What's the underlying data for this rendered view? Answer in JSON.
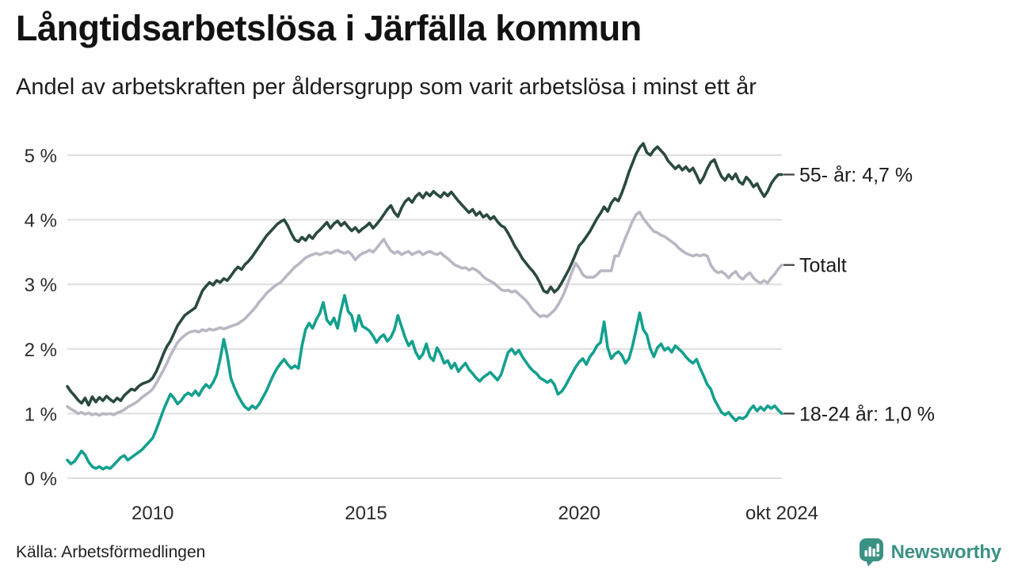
{
  "header": {
    "title": "Långtidsarbetslösa i Järfälla kommun",
    "subtitle": "Andel av arbetskraften per åldersgrupp som varit arbetslösa i minst ett år"
  },
  "footer": {
    "source": "Källa: Arbetsförmedlingen",
    "brand": "Newsworthy"
  },
  "colors": {
    "brand_teal": "#3B9183",
    "grid": "#dedede",
    "end_tick": "#3f3f3f",
    "series_55": "#2a4a3e",
    "series_totalt": "#b9b7c3",
    "series_18_24": "#13a08e"
  },
  "chart_data": {
    "type": "line",
    "title": "Långtidsarbetslösa i Järfälla kommun",
    "subtitle": "Andel av arbetskraften per åldersgrupp som varit arbetslösa i minst ett år",
    "source": "Källa: Arbetsförmedlingen",
    "unit": "%",
    "frequency": "monthly",
    "x_start": "2008-01",
    "x_end": "2024-10",
    "xlim": [
      2008.0,
      2024.75
    ],
    "ylim": [
      0,
      5.3
    ],
    "grid": true,
    "grid_color": "#dedede",
    "legend_position": "right-end-labels",
    "yticks": [
      {
        "v": 0,
        "label": "0 %"
      },
      {
        "v": 1,
        "label": "1 %"
      },
      {
        "v": 2,
        "label": "2 %"
      },
      {
        "v": 3,
        "label": "3 %"
      },
      {
        "v": 4,
        "label": "4 %"
      },
      {
        "v": 5,
        "label": "5 %"
      }
    ],
    "xticks": [
      {
        "t": 2010,
        "label": "2010"
      },
      {
        "t": 2015,
        "label": "2015"
      },
      {
        "t": 2020,
        "label": "2020"
      },
      {
        "t": 2024.75,
        "label": "okt 2024"
      }
    ],
    "series": [
      {
        "id": "totalt",
        "name": "Totalt",
        "end_label": "Totalt",
        "last_value": 3.3,
        "color": "#b9b7c3",
        "values": [
          1.11,
          1.07,
          1.04,
          1.0,
          1.02,
          0.99,
          1.01,
          0.98,
          1.0,
          0.97,
          1.0,
          0.99,
          1.0,
          0.98,
          1.01,
          1.03,
          1.06,
          1.1,
          1.13,
          1.16,
          1.2,
          1.25,
          1.29,
          1.33,
          1.38,
          1.47,
          1.57,
          1.67,
          1.78,
          1.9,
          2.0,
          2.1,
          2.16,
          2.21,
          2.25,
          2.27,
          2.28,
          2.26,
          2.3,
          2.28,
          2.31,
          2.29,
          2.31,
          2.33,
          2.31,
          2.33,
          2.35,
          2.37,
          2.39,
          2.43,
          2.47,
          2.53,
          2.59,
          2.65,
          2.73,
          2.79,
          2.86,
          2.91,
          2.96,
          3.0,
          3.03,
          3.09,
          3.15,
          3.21,
          3.27,
          3.31,
          3.36,
          3.41,
          3.44,
          3.46,
          3.48,
          3.46,
          3.48,
          3.5,
          3.48,
          3.51,
          3.53,
          3.5,
          3.48,
          3.51,
          3.46,
          3.38,
          3.44,
          3.48,
          3.5,
          3.53,
          3.5,
          3.56,
          3.63,
          3.7,
          3.6,
          3.52,
          3.48,
          3.51,
          3.46,
          3.49,
          3.51,
          3.46,
          3.49,
          3.51,
          3.46,
          3.49,
          3.51,
          3.48,
          3.46,
          3.49,
          3.44,
          3.4,
          3.35,
          3.3,
          3.28,
          3.25,
          3.26,
          3.22,
          3.25,
          3.22,
          3.18,
          3.12,
          3.08,
          3.05,
          3.02,
          2.97,
          2.92,
          2.9,
          2.91,
          2.88,
          2.9,
          2.85,
          2.8,
          2.75,
          2.68,
          2.6,
          2.55,
          2.5,
          2.52,
          2.5,
          2.55,
          2.6,
          2.68,
          2.78,
          2.9,
          3.05,
          3.2,
          3.33,
          3.25,
          3.15,
          3.11,
          3.11,
          3.11,
          3.15,
          3.21,
          3.21,
          3.21,
          3.21,
          3.44,
          3.44,
          3.58,
          3.72,
          3.85,
          3.98,
          4.08,
          4.12,
          4.02,
          3.95,
          3.88,
          3.82,
          3.8,
          3.76,
          3.74,
          3.7,
          3.66,
          3.62,
          3.56,
          3.52,
          3.48,
          3.46,
          3.44,
          3.46,
          3.44,
          3.46,
          3.44,
          3.3,
          3.22,
          3.18,
          3.2,
          3.16,
          3.1,
          3.16,
          3.2,
          3.12,
          3.08,
          3.14,
          3.18,
          3.1,
          3.05,
          3.02,
          3.06,
          3.02,
          3.1,
          3.16,
          3.24,
          3.3
        ]
      },
      {
        "id": "55",
        "name": "55- år",
        "end_label": "55- år: 4,7 %",
        "last_value": 4.7,
        "color": "#2a4a3e",
        "values": [
          1.42,
          1.34,
          1.28,
          1.21,
          1.16,
          1.24,
          1.13,
          1.26,
          1.18,
          1.25,
          1.2,
          1.27,
          1.22,
          1.18,
          1.24,
          1.2,
          1.28,
          1.33,
          1.38,
          1.36,
          1.42,
          1.46,
          1.48,
          1.5,
          1.55,
          1.65,
          1.78,
          1.92,
          2.04,
          2.12,
          2.24,
          2.36,
          2.44,
          2.52,
          2.56,
          2.6,
          2.64,
          2.77,
          2.9,
          2.97,
          3.03,
          2.99,
          3.06,
          3.03,
          3.09,
          3.06,
          3.13,
          3.21,
          3.27,
          3.23,
          3.31,
          3.36,
          3.43,
          3.51,
          3.59,
          3.67,
          3.75,
          3.81,
          3.87,
          3.93,
          3.97,
          4.0,
          3.91,
          3.79,
          3.69,
          3.66,
          3.73,
          3.68,
          3.76,
          3.71,
          3.79,
          3.84,
          3.9,
          3.96,
          3.87,
          3.94,
          3.98,
          3.91,
          3.96,
          3.89,
          3.83,
          3.88,
          3.81,
          3.86,
          3.9,
          3.95,
          3.87,
          3.93,
          4.0,
          4.08,
          4.16,
          4.22,
          4.11,
          4.05,
          4.18,
          4.28,
          4.33,
          4.27,
          4.36,
          4.41,
          4.34,
          4.42,
          4.37,
          4.44,
          4.39,
          4.35,
          4.42,
          4.37,
          4.43,
          4.36,
          4.29,
          4.23,
          4.17,
          4.11,
          4.16,
          4.07,
          4.12,
          4.04,
          4.08,
          4.01,
          4.05,
          3.97,
          3.91,
          3.88,
          3.79,
          3.69,
          3.58,
          3.5,
          3.4,
          3.33,
          3.26,
          3.2,
          3.12,
          3.02,
          2.9,
          2.87,
          2.96,
          2.88,
          2.93,
          3.02,
          3.12,
          3.22,
          3.34,
          3.47,
          3.6,
          3.66,
          3.74,
          3.82,
          3.92,
          4.02,
          4.1,
          4.2,
          4.13,
          4.26,
          4.33,
          4.29,
          4.42,
          4.57,
          4.74,
          4.88,
          5.02,
          5.12,
          5.18,
          5.04,
          5.0,
          5.08,
          5.13,
          5.07,
          5.01,
          4.91,
          4.85,
          4.79,
          4.84,
          4.77,
          4.82,
          4.75,
          4.8,
          4.69,
          4.57,
          4.66,
          4.79,
          4.89,
          4.93,
          4.79,
          4.67,
          4.61,
          4.7,
          4.63,
          4.71,
          4.59,
          4.55,
          4.66,
          4.6,
          4.51,
          4.56,
          4.45,
          4.36,
          4.44,
          4.56,
          4.64,
          4.7,
          4.7
        ]
      },
      {
        "id": "18-24",
        "name": "18-24 år",
        "end_label": "18-24 år: 1,0 %",
        "last_value": 1.0,
        "color": "#13a08e",
        "values": [
          0.28,
          0.22,
          0.26,
          0.34,
          0.42,
          0.36,
          0.25,
          0.18,
          0.15,
          0.18,
          0.14,
          0.17,
          0.15,
          0.2,
          0.26,
          0.32,
          0.35,
          0.28,
          0.32,
          0.36,
          0.4,
          0.44,
          0.5,
          0.56,
          0.62,
          0.75,
          0.9,
          1.05,
          1.18,
          1.3,
          1.24,
          1.15,
          1.2,
          1.28,
          1.32,
          1.28,
          1.35,
          1.28,
          1.38,
          1.45,
          1.4,
          1.48,
          1.6,
          1.85,
          2.15,
          1.9,
          1.55,
          1.4,
          1.28,
          1.18,
          1.1,
          1.06,
          1.12,
          1.08,
          1.15,
          1.25,
          1.35,
          1.48,
          1.6,
          1.7,
          1.78,
          1.84,
          1.76,
          1.7,
          1.74,
          1.7,
          2.05,
          2.3,
          2.4,
          2.32,
          2.45,
          2.55,
          2.72,
          2.45,
          2.38,
          2.48,
          2.32,
          2.6,
          2.83,
          2.58,
          2.52,
          2.28,
          2.52,
          2.35,
          2.32,
          2.28,
          2.2,
          2.1,
          2.18,
          2.22,
          2.12,
          2.18,
          2.3,
          2.52,
          2.35,
          2.18,
          2.05,
          2.12,
          1.95,
          1.85,
          1.92,
          2.08,
          1.88,
          1.82,
          2.02,
          1.92,
          1.78,
          1.82,
          1.7,
          1.78,
          1.65,
          1.72,
          1.78,
          1.68,
          1.62,
          1.55,
          1.5,
          1.56,
          1.6,
          1.64,
          1.58,
          1.52,
          1.6,
          1.78,
          1.95,
          2.0,
          1.92,
          1.98,
          1.88,
          1.8,
          1.72,
          1.66,
          1.62,
          1.55,
          1.52,
          1.48,
          1.52,
          1.45,
          1.3,
          1.34,
          1.42,
          1.52,
          1.62,
          1.72,
          1.8,
          1.85,
          1.76,
          1.88,
          1.95,
          2.05,
          2.1,
          2.42,
          2.02,
          1.85,
          1.92,
          1.96,
          1.9,
          1.78,
          1.85,
          2.05,
          2.3,
          2.56,
          2.3,
          2.22,
          2.0,
          1.88,
          2.02,
          2.08,
          1.98,
          2.02,
          1.95,
          2.05,
          2.0,
          1.95,
          1.88,
          1.82,
          1.78,
          1.84,
          1.7,
          1.58,
          1.45,
          1.38,
          1.22,
          1.12,
          1.02,
          0.98,
          1.02,
          0.95,
          0.89,
          0.94,
          0.92,
          0.96,
          1.06,
          1.12,
          1.04,
          1.1,
          1.05,
          1.12,
          1.08,
          1.12,
          1.05,
          1.0
        ]
      }
    ]
  }
}
